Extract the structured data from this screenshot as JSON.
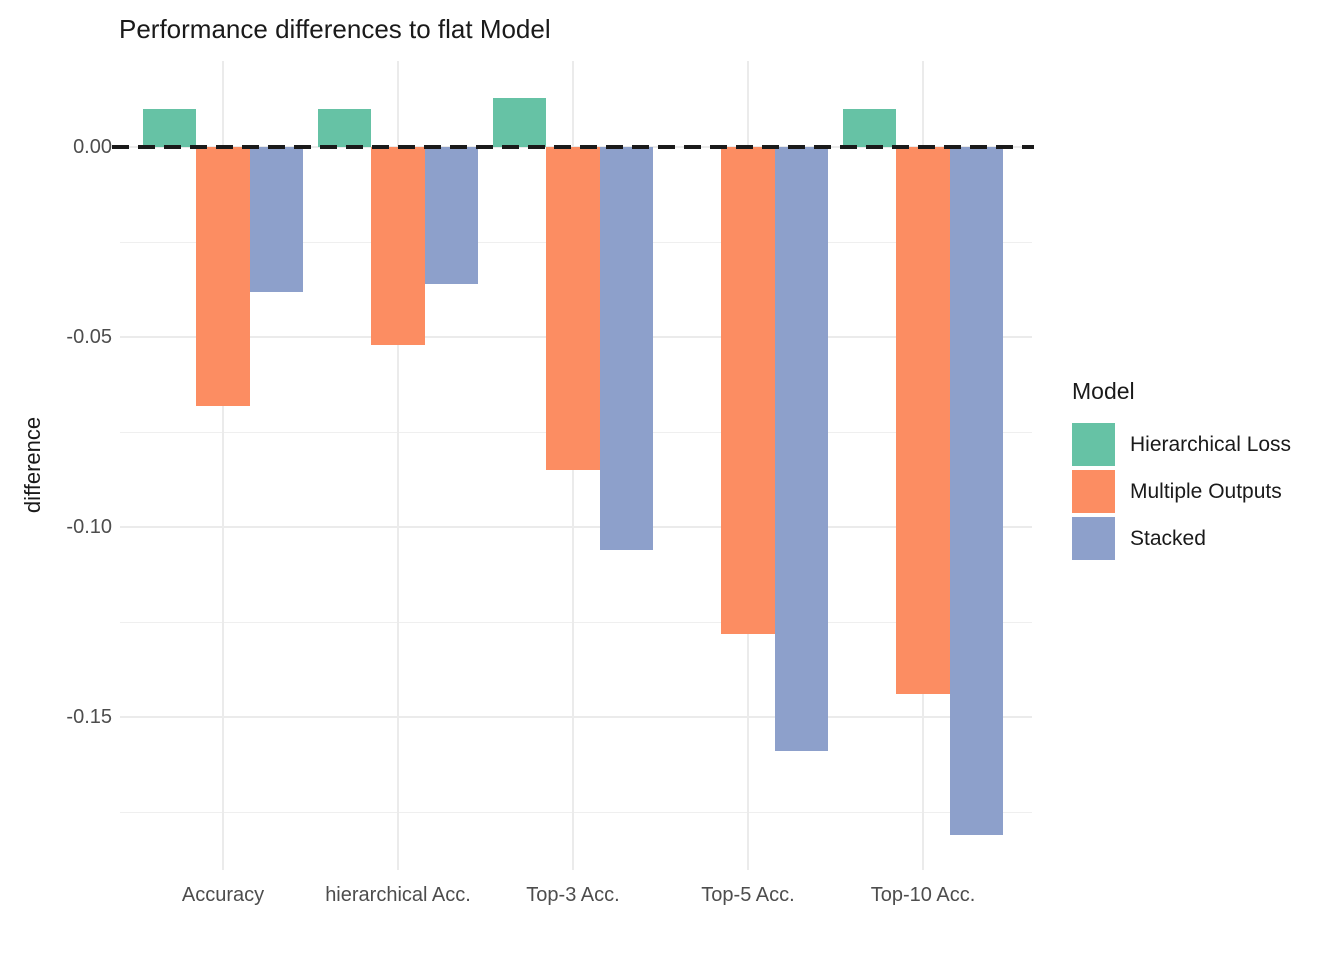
{
  "chart_data": {
    "type": "bar",
    "title": "Performance differences to flat Model",
    "xlabel": "",
    "ylabel": "difference",
    "categories": [
      "Accuracy",
      "hierarchical Acc.",
      "Top-3 Acc.",
      "Top-5 Acc.",
      "Top-10 Acc."
    ],
    "series": [
      {
        "name": "Hierarchical Loss",
        "color": "#66C2A5",
        "values": [
          0.01,
          0.01,
          0.013,
          0,
          0.01
        ]
      },
      {
        "name": "Multiple Outputs",
        "color": "#FC8D62",
        "values": [
          -0.068,
          -0.052,
          -0.085,
          -0.128,
          -0.144
        ]
      },
      {
        "name": "Stacked",
        "color": "#8DA0CB",
        "values": [
          -0.038,
          -0.036,
          -0.106,
          -0.159,
          -0.181
        ]
      }
    ],
    "ylim": [
      -0.1902,
      0.0227
    ],
    "y_major_ticks": [
      0,
      -0.05,
      -0.1,
      -0.15
    ],
    "y_major_labels": [
      "0.00",
      "-0.05",
      "-0.10",
      "-0.15"
    ],
    "y_minor_ticks": [
      -0.025,
      -0.075,
      -0.125,
      -0.175
    ],
    "reference_line": {
      "y": 0,
      "style": "dashed",
      "color": "#1a1a1a"
    },
    "legend": {
      "title": "Model",
      "position": "right"
    },
    "grid": {
      "major_color": "#EBEBEB",
      "minor_color": "#EFEFEF",
      "background": "#FFFFFF"
    }
  }
}
